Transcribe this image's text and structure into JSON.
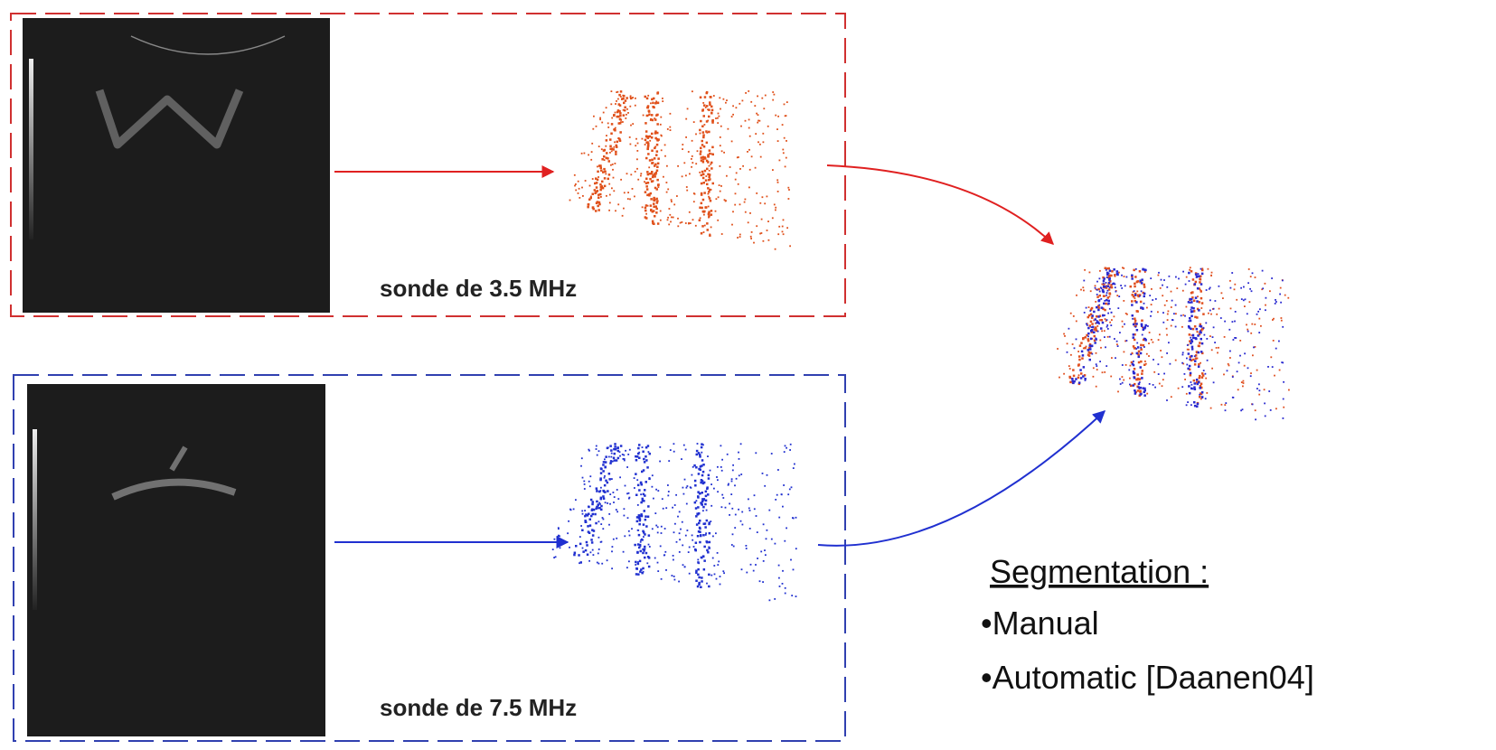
{
  "probes": [
    {
      "label": "sonde de 3.5 MHz"
    },
    {
      "label": "sonde de 7.5 MHz"
    }
  ],
  "segmentation": {
    "title": "Segmentation :",
    "items": [
      "•Manual",
      "•Automatic [Daanen04]"
    ]
  }
}
